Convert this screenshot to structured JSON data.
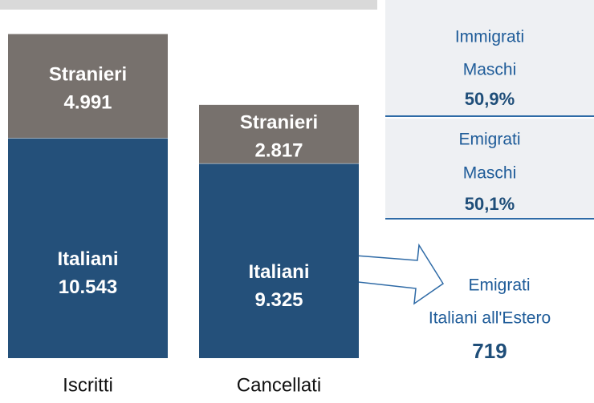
{
  "chart_data": {
    "type": "stacked_bar",
    "categories": [
      "Iscritti",
      "Cancellati"
    ],
    "series": [
      {
        "name": "Italiani",
        "color": "#24507a",
        "values": [
          10543,
          9325
        ],
        "value_labels": [
          "10.543",
          "9.325"
        ]
      },
      {
        "name": "Stranieri",
        "color": "#77716d",
        "values": [
          4991,
          2817
        ],
        "value_labels": [
          "4.991",
          "2.817"
        ]
      }
    ],
    "annotations": [
      {
        "lines": [
          "Immigrati",
          "Maschi"
        ],
        "value": "50,9%"
      },
      {
        "lines": [
          "Emigrati",
          "Maschi"
        ],
        "value": "50,1%"
      },
      {
        "lines": [
          "Emigrati",
          "Italiani all'Estero"
        ],
        "value": "719"
      }
    ]
  }
}
